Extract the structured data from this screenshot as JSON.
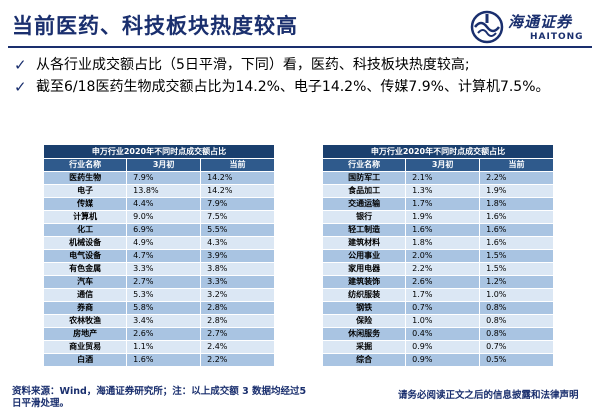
{
  "title": "当前医药、科技板块热度较高",
  "logo": {
    "cn": "海通证券",
    "en": "HAITONG",
    "mark_icon": "haitong-logo-icon"
  },
  "bullets": [
    "从各行业成交额占比（5日平滑，下同）看，医药、科技板块热度较高;",
    "截至6/18医药生物成交额占比为14.2%、电子14.2%、传媒7.9%、计算机7.5%。"
  ],
  "check_glyph": "✓",
  "colors": {
    "brand": "#1a2f6e",
    "caption_bg": "#1a3f6e",
    "header_bg": "#2f5a8c",
    "row_dark": "#a9c4e2",
    "row_light": "#dbe7f4"
  },
  "tables": {
    "left": {
      "caption": "申万行业2020年不同时点成交额占比",
      "headers": [
        "行业名称",
        "3月初",
        "当前"
      ],
      "rows": [
        [
          "医药生物",
          "7.9%",
          "14.2%"
        ],
        [
          "电子",
          "13.8%",
          "14.2%"
        ],
        [
          "传媒",
          "4.4%",
          "7.9%"
        ],
        [
          "计算机",
          "9.0%",
          "7.5%"
        ],
        [
          "化工",
          "6.9%",
          "5.5%"
        ],
        [
          "机械设备",
          "4.9%",
          "4.3%"
        ],
        [
          "电气设备",
          "4.7%",
          "3.9%"
        ],
        [
          "有色金属",
          "3.3%",
          "3.8%"
        ],
        [
          "汽车",
          "2.7%",
          "3.3%"
        ],
        [
          "通信",
          "5.3%",
          "3.2%"
        ],
        [
          "券商",
          "5.8%",
          "2.8%"
        ],
        [
          "农林牧渔",
          "3.4%",
          "2.8%"
        ],
        [
          "房地产",
          "2.6%",
          "2.7%"
        ],
        [
          "商业贸易",
          "1.1%",
          "2.4%"
        ],
        [
          "白酒",
          "1.6%",
          "2.2%"
        ]
      ]
    },
    "right": {
      "caption": "申万行业2020年不同时点成交额占比",
      "headers": [
        "行业名称",
        "3月初",
        "当前"
      ],
      "rows": [
        [
          "国防军工",
          "2.1%",
          "2.2%"
        ],
        [
          "食品加工",
          "1.3%",
          "1.9%"
        ],
        [
          "交通运输",
          "1.7%",
          "1.8%"
        ],
        [
          "银行",
          "1.9%",
          "1.6%"
        ],
        [
          "轻工制造",
          "1.6%",
          "1.6%"
        ],
        [
          "建筑材料",
          "1.8%",
          "1.6%"
        ],
        [
          "公用事业",
          "2.0%",
          "1.5%"
        ],
        [
          "家用电器",
          "2.2%",
          "1.5%"
        ],
        [
          "建筑装饰",
          "2.6%",
          "1.2%"
        ],
        [
          "纺织服装",
          "1.7%",
          "1.0%"
        ],
        [
          "钢铁",
          "0.7%",
          "0.8%"
        ],
        [
          "保险",
          "1.0%",
          "0.8%"
        ],
        [
          "休闲服务",
          "0.4%",
          "0.8%"
        ],
        [
          "采掘",
          "0.9%",
          "0.7%"
        ],
        [
          "综合",
          "0.9%",
          "0.5%"
        ]
      ]
    }
  },
  "footer": {
    "source": "资料来源：Wind，海通证券研究所；注：以上成交额 3 数据均经过5日平滑处理。",
    "disclaimer": "请务必阅读正文之后的信息披露和法律声明"
  }
}
